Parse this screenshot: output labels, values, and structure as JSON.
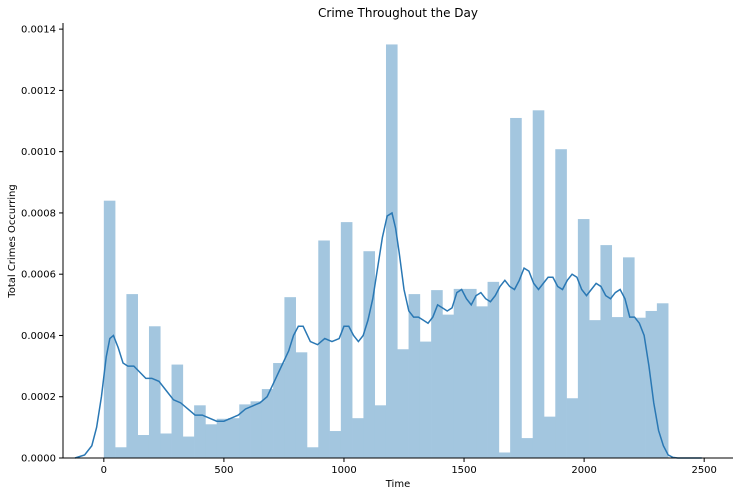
{
  "chart_data": {
    "type": "bar",
    "title": "Crime Throughout the Day",
    "xlabel": "Time",
    "ylabel": "Total Crimes Occurring",
    "xlim": [
      -170,
      2620
    ],
    "ylim": [
      0,
      0.00142
    ],
    "xticks": [
      0,
      500,
      1000,
      1500,
      2000,
      2500
    ],
    "xtick_labels": [
      "0",
      "500",
      "1000",
      "1500",
      "2000",
      "2500"
    ],
    "yticks": [
      0,
      0.0002,
      0.0004,
      0.0006,
      0.0008,
      0.001,
      0.0012,
      0.0014
    ],
    "ytick_labels": [
      "0.0000",
      "0.0002",
      "0.0004",
      "0.0006",
      "0.0008",
      "0.0010",
      "0.0012",
      "0.0014"
    ],
    "grid": false,
    "bar_color": "#a3c6df",
    "line_color": "#2a78b4",
    "histogram": {
      "bin_edges": [
        0,
        47,
        94,
        141,
        188,
        235,
        282,
        329,
        376,
        423,
        470,
        517,
        564,
        611,
        658,
        705,
        752,
        799,
        846,
        893,
        940,
        987,
        1034,
        1081,
        1128,
        1175,
        1222,
        1269,
        1316,
        1363,
        1410,
        1457,
        1504,
        1551,
        1598,
        1645,
        1692,
        1739,
        1786,
        1833,
        1880,
        1927,
        1974,
        2021,
        2068,
        2115,
        2162,
        2209,
        2256,
        2303,
        2350
      ],
      "values": [
        0.00084,
        3.5e-05,
        0.000535,
        7.5e-05,
        0.00043,
        8e-05,
        0.000305,
        7e-05,
        0.000172,
        0.00011,
        0.000128,
        0.00013,
        0.000175,
        0.000185,
        0.000225,
        0.00031,
        0.000525,
        0.000345,
        3.5e-05,
        0.00071,
        8.8e-05,
        0.00077,
        0.00013,
        0.000675,
        0.000172,
        0.00135,
        0.000355,
        0.000535,
        0.00038,
        0.000548,
        0.000468,
        0.000552,
        0.000552,
        0.000495,
        0.000575,
        1.8e-05,
        0.00111,
        6.5e-05,
        0.001135,
        0.000135,
        0.001008,
        0.000195,
        0.00078,
        0.00045,
        0.000695,
        0.00046,
        0.000655,
        0.000458,
        0.00048,
        0.000505
      ]
    },
    "kde": {
      "x": [
        -120,
        -80,
        -50,
        -30,
        -10,
        10,
        25,
        40,
        60,
        80,
        100,
        125,
        150,
        175,
        200,
        230,
        260,
        290,
        320,
        350,
        380,
        410,
        440,
        470,
        500,
        530,
        560,
        590,
        620,
        650,
        680,
        710,
        740,
        770,
        790,
        810,
        830,
        860,
        890,
        920,
        950,
        980,
        1000,
        1020,
        1040,
        1060,
        1080,
        1100,
        1120,
        1140,
        1160,
        1180,
        1200,
        1215,
        1230,
        1250,
        1270,
        1290,
        1310,
        1330,
        1350,
        1370,
        1390,
        1410,
        1430,
        1450,
        1470,
        1490,
        1510,
        1530,
        1550,
        1570,
        1590,
        1610,
        1630,
        1650,
        1670,
        1690,
        1710,
        1730,
        1750,
        1770,
        1790,
        1810,
        1830,
        1850,
        1870,
        1890,
        1910,
        1930,
        1950,
        1970,
        1990,
        2010,
        2030,
        2050,
        2070,
        2090,
        2110,
        2130,
        2150,
        2170,
        2190,
        2210,
        2230,
        2250,
        2270,
        2290,
        2310,
        2330,
        2350,
        2370,
        2390,
        2410,
        2430,
        2450,
        2470,
        2490
      ],
      "y": [
        0,
        1e-05,
        4e-05,
        0.0001,
        0.0002,
        0.00033,
        0.00039,
        0.0004,
        0.00036,
        0.00031,
        0.0003,
        0.0003,
        0.00028,
        0.00026,
        0.00026,
        0.00025,
        0.00022,
        0.00019,
        0.00018,
        0.00016,
        0.00014,
        0.00014,
        0.00013,
        0.00012,
        0.00012,
        0.00013,
        0.00014,
        0.00016,
        0.00017,
        0.00018,
        0.0002,
        0.00025,
        0.0003,
        0.00035,
        0.0004,
        0.00043,
        0.00043,
        0.00038,
        0.00037,
        0.00039,
        0.00038,
        0.00039,
        0.00043,
        0.00043,
        0.0004,
        0.00038,
        0.0004,
        0.00045,
        0.00052,
        0.00062,
        0.00072,
        0.00079,
        0.0008,
        0.00075,
        0.00067,
        0.00055,
        0.00048,
        0.00046,
        0.00046,
        0.00045,
        0.00044,
        0.00046,
        0.0005,
        0.00049,
        0.00048,
        0.00049,
        0.00054,
        0.00055,
        0.00052,
        0.0005,
        0.00053,
        0.00054,
        0.00052,
        0.00051,
        0.00053,
        0.00056,
        0.00058,
        0.00056,
        0.00055,
        0.00058,
        0.00062,
        0.00061,
        0.00057,
        0.00055,
        0.00057,
        0.00059,
        0.00059,
        0.00056,
        0.00055,
        0.00058,
        0.0006,
        0.00059,
        0.00055,
        0.00053,
        0.00055,
        0.00057,
        0.00056,
        0.00053,
        0.00052,
        0.00054,
        0.00055,
        0.00052,
        0.00046,
        0.00046,
        0.00044,
        0.0004,
        0.0003,
        0.00018,
        9e-05,
        4e-05,
        1e-05,
        2e-06,
        0,
        0,
        0,
        0,
        0,
        0
      ]
    }
  }
}
